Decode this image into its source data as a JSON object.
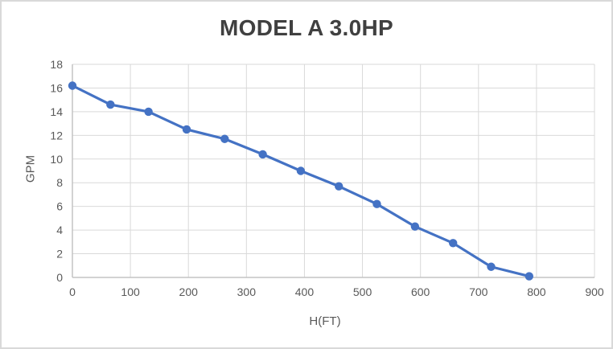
{
  "chart_data": {
    "type": "line",
    "title": "MODEL A 3.0HP",
    "xlabel": "H(FT)",
    "ylabel": "GPM",
    "xlim": [
      0,
      900
    ],
    "ylim": [
      0,
      18
    ],
    "x_ticks": [
      0,
      100,
      200,
      300,
      400,
      500,
      600,
      700,
      800,
      900
    ],
    "y_ticks": [
      0,
      2,
      4,
      6,
      8,
      10,
      12,
      14,
      16,
      18
    ],
    "grid": true,
    "legend_position": "none",
    "marker": "circle",
    "series": [
      {
        "name": "MODEL A 3.0HP",
        "x": [
          0,
          65.6,
          131.2,
          196.9,
          262.5,
          328.1,
          393.7,
          459.3,
          524.9,
          590.6,
          656.2,
          721.8,
          787.4
        ],
        "y": [
          16.2,
          14.6,
          14.0,
          12.5,
          11.7,
          10.4,
          9.0,
          7.7,
          6.2,
          4.3,
          2.9,
          0.9,
          0.1
        ]
      }
    ]
  },
  "colors": {
    "accent": "#4472C4",
    "gridline": "#d9d9d9",
    "axis_line": "#c3c3c3",
    "title_text": "#404040",
    "tick_text": "#595959",
    "border": "#d9d9d9",
    "background": "#ffffff"
  }
}
